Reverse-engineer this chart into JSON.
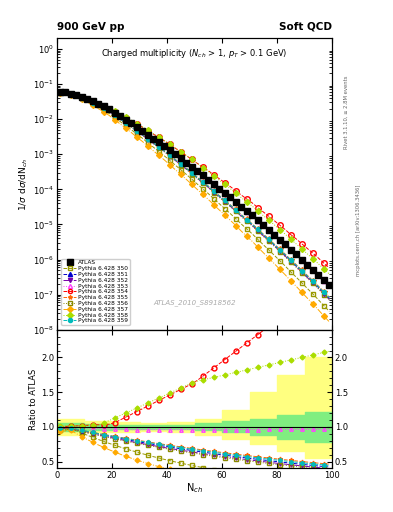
{
  "title_left": "900 GeV pp",
  "title_right": "Soft QCD",
  "plot_title": "Charged multiplicity ($N_{ch}$ > 1, $p_T$ > 0.1 GeV)",
  "xlabel": "N$_{ch}$",
  "ylabel_top": "1/$\\sigma$ d$\\sigma$/dN$_{ch}$",
  "ylabel_bottom": "Ratio to ATLAS",
  "watermark": "ATLAS_2010_S8918562",
  "rivet_text": "Rivet 3.1.10, ≥ 2.8M events",
  "mcplots_text": "mcplots.cern.ch [arXiv:1306.3436]",
  "xmin": 0,
  "xmax": 100,
  "series": [
    {
      "label": "ATLAS",
      "color": "#000000",
      "marker": "s",
      "markersize": 4,
      "linestyle": "none",
      "fillstyle": "full",
      "zorder": 10
    },
    {
      "label": "Pythia 6.428 350",
      "color": "#999900",
      "marker": "s",
      "markersize": 3,
      "linestyle": "--",
      "fillstyle": "none",
      "zorder": 5
    },
    {
      "label": "Pythia 6.428 351",
      "color": "#0000cc",
      "marker": "^",
      "markersize": 3,
      "linestyle": "--",
      "fillstyle": "full",
      "zorder": 5
    },
    {
      "label": "Pythia 6.428 352",
      "color": "#7700aa",
      "marker": "v",
      "markersize": 3,
      "linestyle": "-.",
      "fillstyle": "full",
      "zorder": 5
    },
    {
      "label": "Pythia 6.428 353",
      "color": "#ff44ff",
      "marker": "^",
      "markersize": 3,
      "linestyle": ":",
      "fillstyle": "none",
      "zorder": 5
    },
    {
      "label": "Pythia 6.428 354",
      "color": "#ff0000",
      "marker": "o",
      "markersize": 4,
      "linestyle": "--",
      "fillstyle": "none",
      "zorder": 5
    },
    {
      "label": "Pythia 6.428 355",
      "color": "#ff6600",
      "marker": "*",
      "markersize": 4,
      "linestyle": "--",
      "fillstyle": "full",
      "zorder": 5
    },
    {
      "label": "Pythia 6.428 356",
      "color": "#888800",
      "marker": "s",
      "markersize": 3,
      "linestyle": ":",
      "fillstyle": "none",
      "zorder": 5
    },
    {
      "label": "Pythia 6.428 357",
      "color": "#ffaa00",
      "marker": "D",
      "markersize": 3,
      "linestyle": "-.",
      "fillstyle": "full",
      "zorder": 5
    },
    {
      "label": "Pythia 6.428 358",
      "color": "#aadd00",
      "marker": "D",
      "markersize": 3,
      "linestyle": ":",
      "fillstyle": "full",
      "zorder": 5
    },
    {
      "label": "Pythia 6.428 359",
      "color": "#00bbbb",
      "marker": "o",
      "markersize": 3,
      "linestyle": "--",
      "fillstyle": "full",
      "zorder": 5
    }
  ],
  "ratio_band_yellow": {
    "color": "#ffff80",
    "alpha": 1.0
  },
  "ratio_band_green": {
    "color": "#80ee80",
    "alpha": 1.0
  },
  "background_color": "#ffffff"
}
